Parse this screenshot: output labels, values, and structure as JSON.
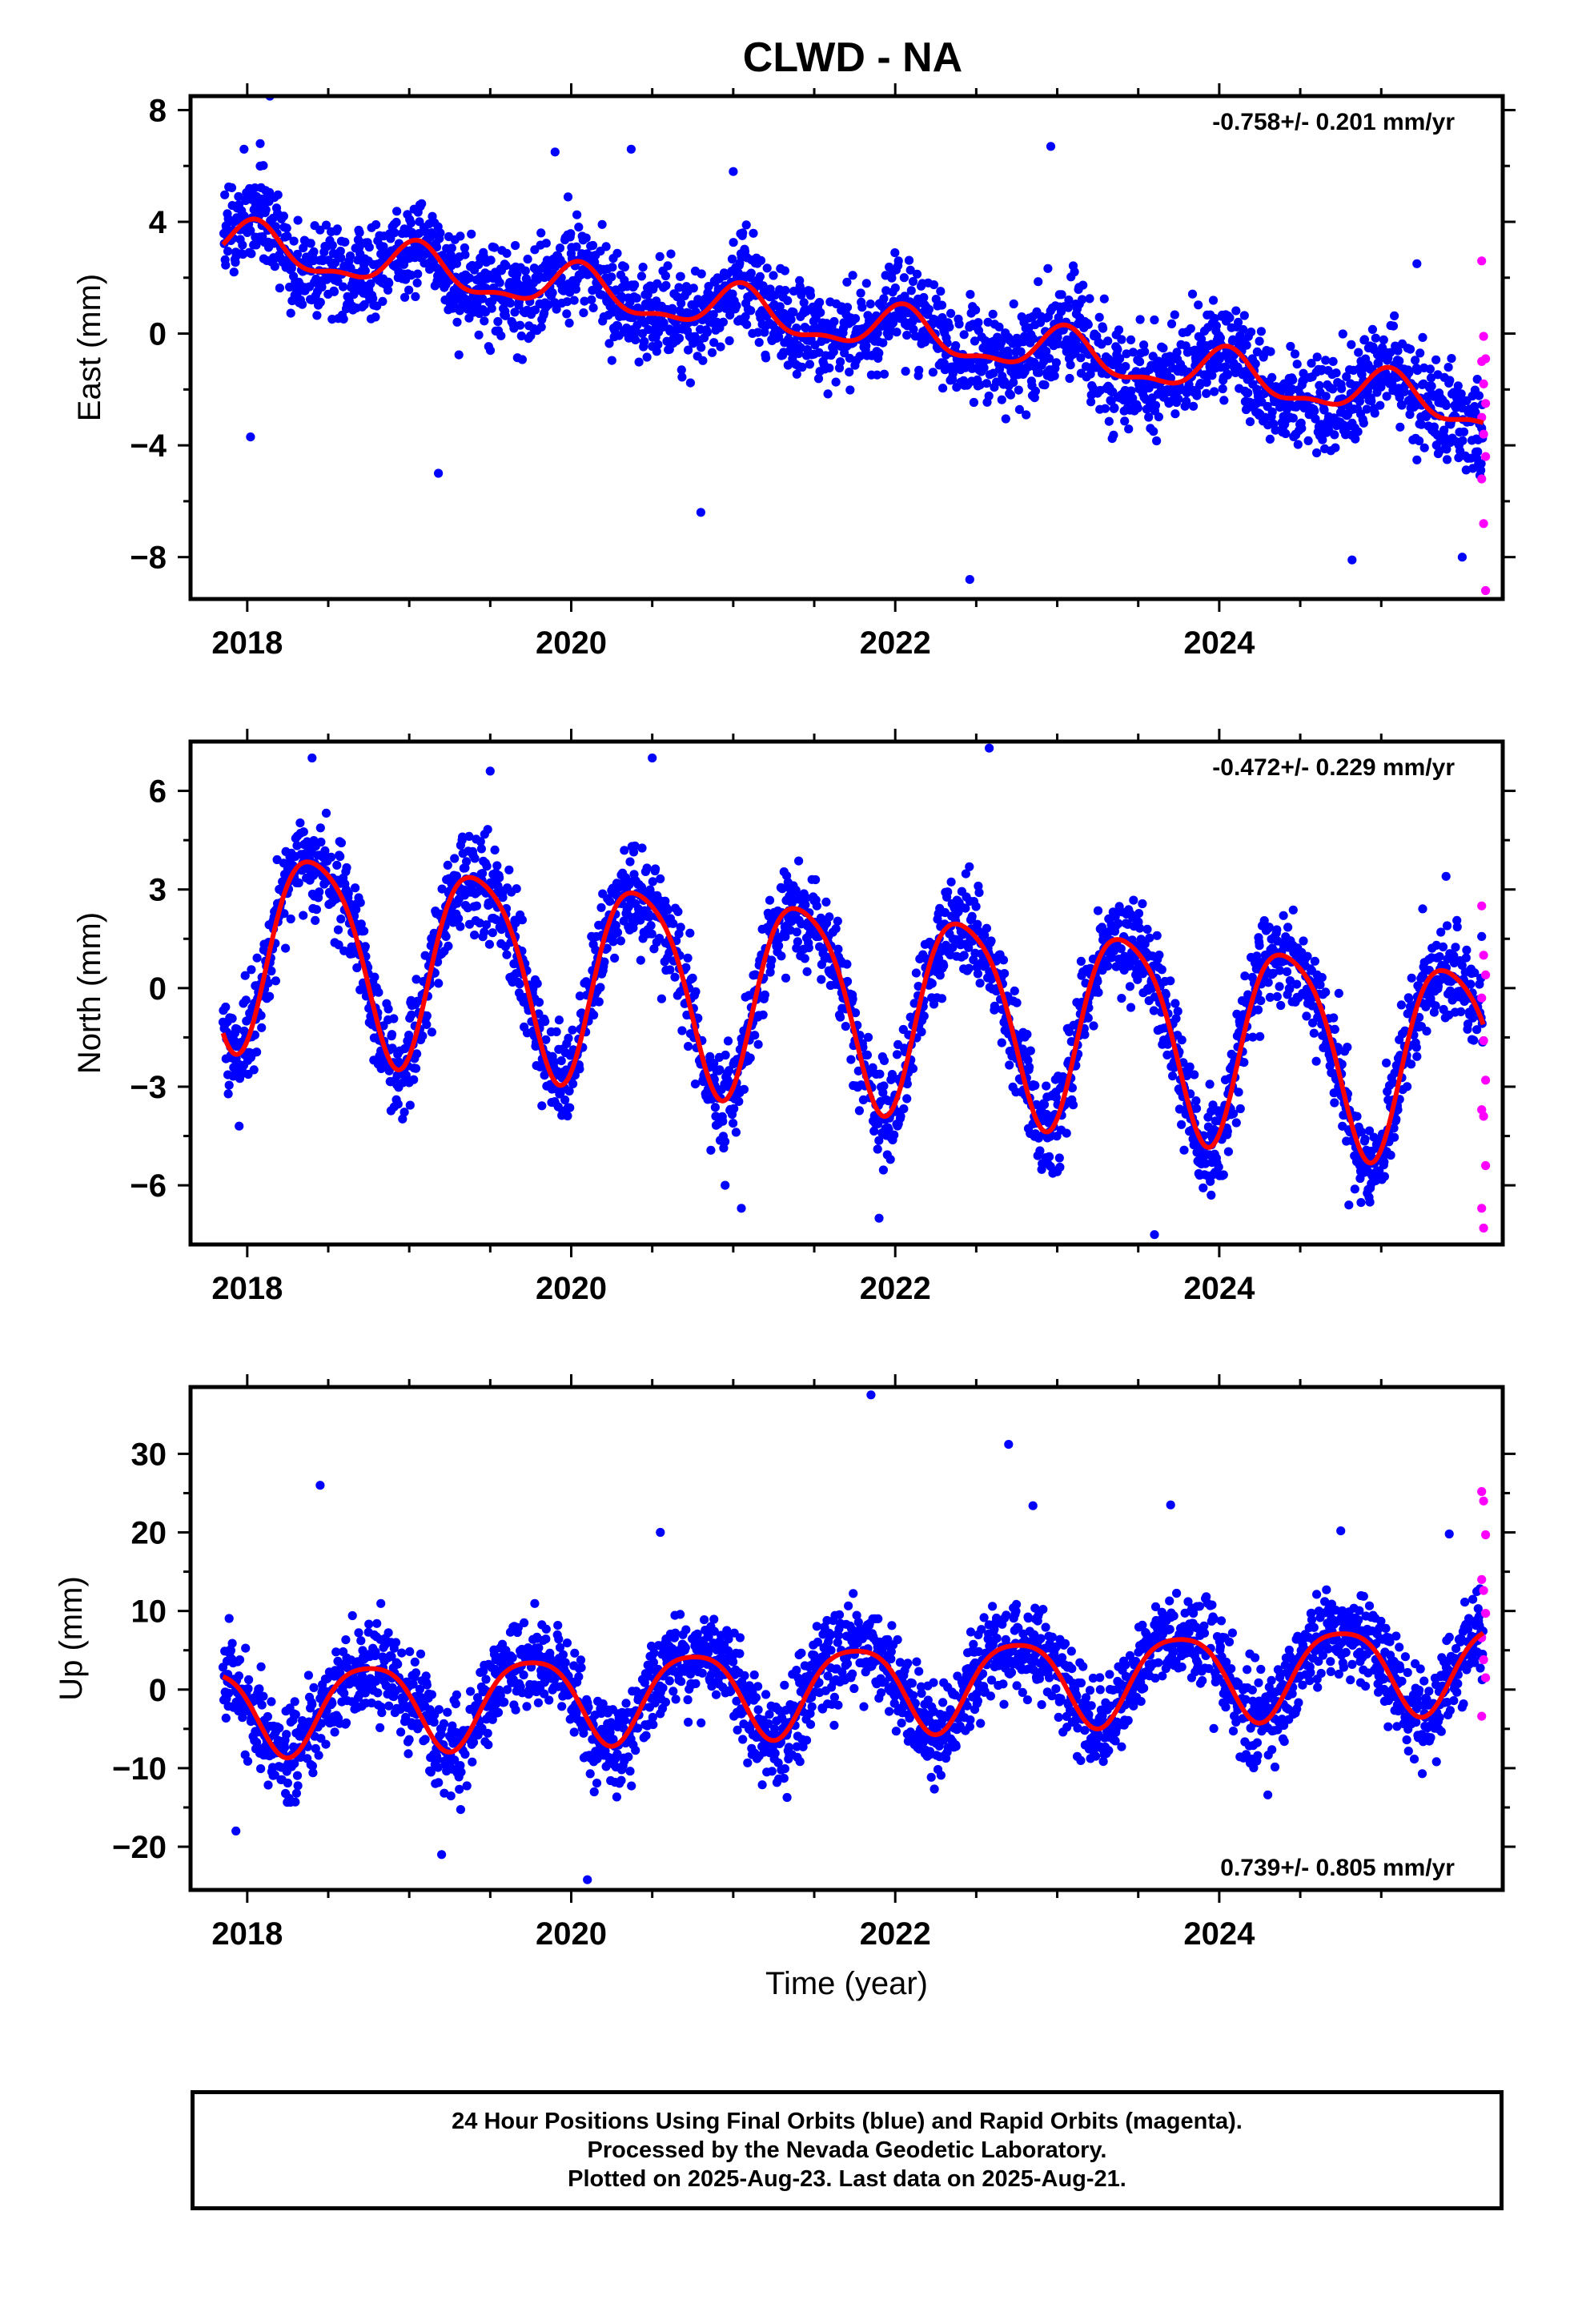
{
  "title": "CLWD - NA",
  "caption": {
    "lines": [
      "24 Hour Positions Using Final Orbits (blue) and Rapid Orbits (magenta).",
      "Processed by the Nevada Geodetic Laboratory.",
      "Plotted on 2025-Aug-23. Last data on 2025-Aug-21."
    ]
  },
  "colors": {
    "final_orbits": "#0000ff",
    "rapid_orbits": "#ff00ff",
    "model_fit": "#ff0000",
    "frame": "#000000"
  },
  "chart_data": [
    {
      "type": "scatter",
      "component": "east",
      "ylabel": "East (mm)",
      "xlabel": "",
      "rate_label": "-0.758+/- 0.201 mm/yr",
      "rate_position": "top-right",
      "xlim": [
        2017.65,
        2025.75
      ],
      "ylim": [
        -9.5,
        8.5
      ],
      "xticks": [
        2018,
        2020,
        2022,
        2024
      ],
      "xtick_labels": [
        "2018",
        "2020",
        "2022",
        "2024"
      ],
      "yticks": [
        8,
        4,
        0,
        -4,
        -8
      ],
      "ytick_labels": [
        "8",
        "4",
        "0",
        "−4",
        "−8"
      ],
      "series": [],
      "model": {
        "start": 2017.85,
        "end": 2025.63,
        "offset": 3.2,
        "trend": -0.758,
        "annual_amp": 0.75,
        "annual_peak": 2018.05,
        "semi_amp": 0.3,
        "semi_peak": 2018.05,
        "step": 0.4
      },
      "noise": 1.2,
      "rapid_values": [
        2.6,
        -0.1,
        -0.9,
        -1.0,
        -1.8,
        -2.5,
        -3.0,
        -3.6,
        -4.4,
        -5.2,
        -6.8,
        -9.2
      ],
      "outliers": [
        [
          2017.98,
          6.6
        ],
        [
          2018.08,
          6.8
        ],
        [
          2018.14,
          8.5
        ],
        [
          2018.02,
          -3.7
        ],
        [
          2019.18,
          -5.0
        ],
        [
          2019.9,
          6.5
        ],
        [
          2020.37,
          6.6
        ],
        [
          2020.8,
          -6.4
        ],
        [
          2021.0,
          5.8
        ],
        [
          2022.46,
          -8.8
        ],
        [
          2022.96,
          6.7
        ],
        [
          2024.82,
          -8.1
        ],
        [
          2025.5,
          -8.0
        ],
        [
          2025.22,
          2.5
        ]
      ]
    },
    {
      "type": "scatter",
      "component": "north",
      "ylabel": "North (mm)",
      "xlabel": "",
      "rate_label": "-0.472+/- 0.229 mm/yr",
      "rate_position": "top-right",
      "xlim": [
        2017.65,
        2025.75
      ],
      "ylim": [
        -7.8,
        7.5
      ],
      "xticks": [
        2018,
        2020,
        2022,
        2024
      ],
      "xtick_labels": [
        "2018",
        "2020",
        "2022",
        "2024"
      ],
      "yticks": [
        6,
        3,
        0,
        -3,
        -6
      ],
      "ytick_labels": [
        "6",
        "3",
        "0",
        "−3",
        "−6"
      ],
      "series": [],
      "model": {
        "start": 2017.85,
        "end": 2025.63,
        "offset": 1.5,
        "trend": -0.472,
        "annual_amp": 3.0,
        "annual_peak": 2018.42,
        "semi_amp": 0.5,
        "semi_peak": 2018.2,
        "step": 0
      },
      "noise": 1.0,
      "rapid_values": [
        2.5,
        1.0,
        0.4,
        -0.3,
        -1.6,
        -2.8,
        -3.7,
        -3.9,
        -5.4,
        -6.7,
        -7.3
      ],
      "outliers": [
        [
          2017.95,
          -4.2
        ],
        [
          2018.4,
          7.0
        ],
        [
          2019.5,
          6.6
        ],
        [
          2020.5,
          7.0
        ],
        [
          2020.95,
          -6.0
        ],
        [
          2021.05,
          -6.7
        ],
        [
          2021.9,
          -7.0
        ],
        [
          2022.58,
          7.3
        ],
        [
          2023.6,
          -7.5
        ],
        [
          2023.95,
          -6.3
        ],
        [
          2024.8,
          -6.6
        ],
        [
          2025.4,
          3.4
        ]
      ]
    },
    {
      "type": "scatter",
      "component": "up",
      "ylabel": "Up (mm)",
      "xlabel": "Time (year)",
      "rate_label": "0.739+/- 0.805 mm/yr",
      "rate_position": "bottom-right",
      "xlim": [
        2017.65,
        2025.75
      ],
      "ylim": [
        -25.5,
        38.5
      ],
      "xticks": [
        2018,
        2020,
        2022,
        2024
      ],
      "xtick_labels": [
        "2018",
        "2020",
        "2022",
        "2024"
      ],
      "yticks": [
        30,
        20,
        10,
        0,
        -10,
        -20
      ],
      "ytick_labels": [
        "30",
        "20",
        "10",
        "0",
        "−10",
        "−20"
      ],
      "series": [],
      "model": {
        "start": 2017.85,
        "end": 2025.63,
        "offset": -2.5,
        "trend": 0.739,
        "annual_amp": 5.5,
        "annual_peak": 2018.75,
        "semi_amp": 1.0,
        "semi_peak": 2018.0,
        "step": 0
      },
      "noise": 4.0,
      "rapid_values": [
        25.2,
        24.0,
        19.7,
        14.0,
        12.6,
        9.7,
        6.6,
        3.8,
        1.5,
        -3.4
      ],
      "outliers": [
        [
          2018.45,
          26.0
        ],
        [
          2020.55,
          20.0
        ],
        [
          2021.85,
          37.5
        ],
        [
          2022.7,
          31.2
        ],
        [
          2022.85,
          23.4
        ],
        [
          2023.7,
          23.5
        ],
        [
          2019.2,
          -21.0
        ],
        [
          2020.1,
          -24.2
        ],
        [
          2024.3,
          -13.4
        ],
        [
          2017.93,
          -18.0
        ],
        [
          2025.42,
          19.8
        ],
        [
          2024.75,
          20.2
        ]
      ]
    }
  ]
}
